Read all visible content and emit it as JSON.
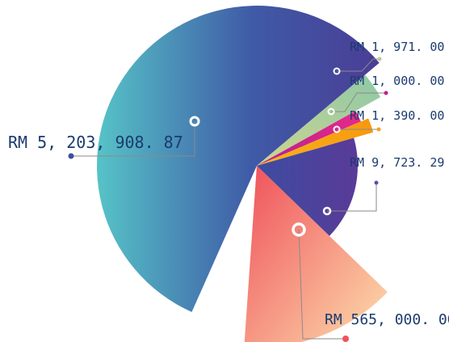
{
  "chart_data": {
    "type": "pie",
    "title": "",
    "currency": "RM",
    "slices": [
      {
        "label": "RM 5, 203, 908. 87",
        "value": 5203908.87,
        "color": "#3d4fa0",
        "accent": "#56c3c7"
      },
      {
        "label": "RM 1, 971. 00",
        "value": 1971.0,
        "color": "#a9cf9a",
        "accent": "#56c3c7"
      },
      {
        "label": "RM 1, 000. 00",
        "value": 1000.0,
        "color": "#d6268f",
        "accent": "#c0208a"
      },
      {
        "label": "RM 1, 390. 00",
        "value": 1390.0,
        "color": "#f7a21b",
        "accent": "#f7a21b"
      },
      {
        "label": "RM 9, 723. 29",
        "value": 9723.29,
        "color": "#4b3a8f",
        "accent": "#5b4fb0"
      },
      {
        "label": "RM 565, 000. 00",
        "value": 565000.0,
        "color": "#f0525a",
        "accent": "#fcd0a1"
      }
    ],
    "legend": "none"
  }
}
